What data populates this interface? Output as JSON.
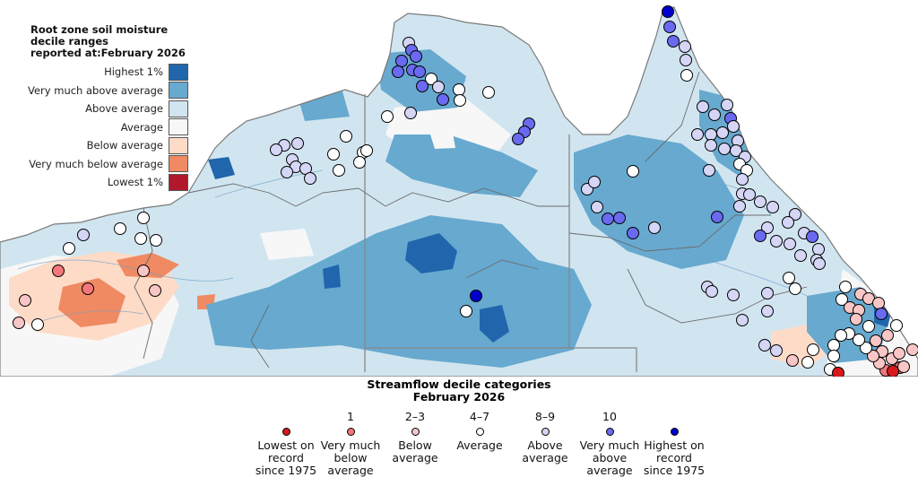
{
  "soil_legend": {
    "title": "Root zone soil moisture\ndecile ranges\nreported at:February 2026",
    "items": [
      {
        "label": "Highest 1%",
        "color": "#2166ac"
      },
      {
        "label": "Very much above average",
        "color": "#67a9cf"
      },
      {
        "label": "Above average",
        "color": "#d1e5f0"
      },
      {
        "label": "Average",
        "color": "#f7f7f7"
      },
      {
        "label": "Below average",
        "color": "#fddbc7"
      },
      {
        "label": "Very much below average",
        "color": "#ef8a62"
      },
      {
        "label": "Lowest 1%",
        "color": "#b2182b"
      }
    ]
  },
  "streamflow_legend": {
    "title": "Streamflow decile categories\nFebruary 2026",
    "items": [
      {
        "number": "",
        "label": "Lowest on\nrecord\nsince 1975",
        "color": "#d7191c"
      },
      {
        "number": "1",
        "label": "Very much\nbelow\naverage",
        "color": "#f4777b"
      },
      {
        "number": "2–3",
        "label": "Below\naverage",
        "color": "#f9c6c6"
      },
      {
        "number": "4–7",
        "label": "Average",
        "color": "#ffffff"
      },
      {
        "number": "8–9",
        "label": "Above\naverage",
        "color": "#d5d5f5"
      },
      {
        "number": "10",
        "label": "Very much\nabove\naverage",
        "color": "#6a6af0"
      },
      {
        "number": "",
        "label": "Highest on\nrecord\nsince 1975",
        "color": "#0000cc"
      }
    ]
  }
}
